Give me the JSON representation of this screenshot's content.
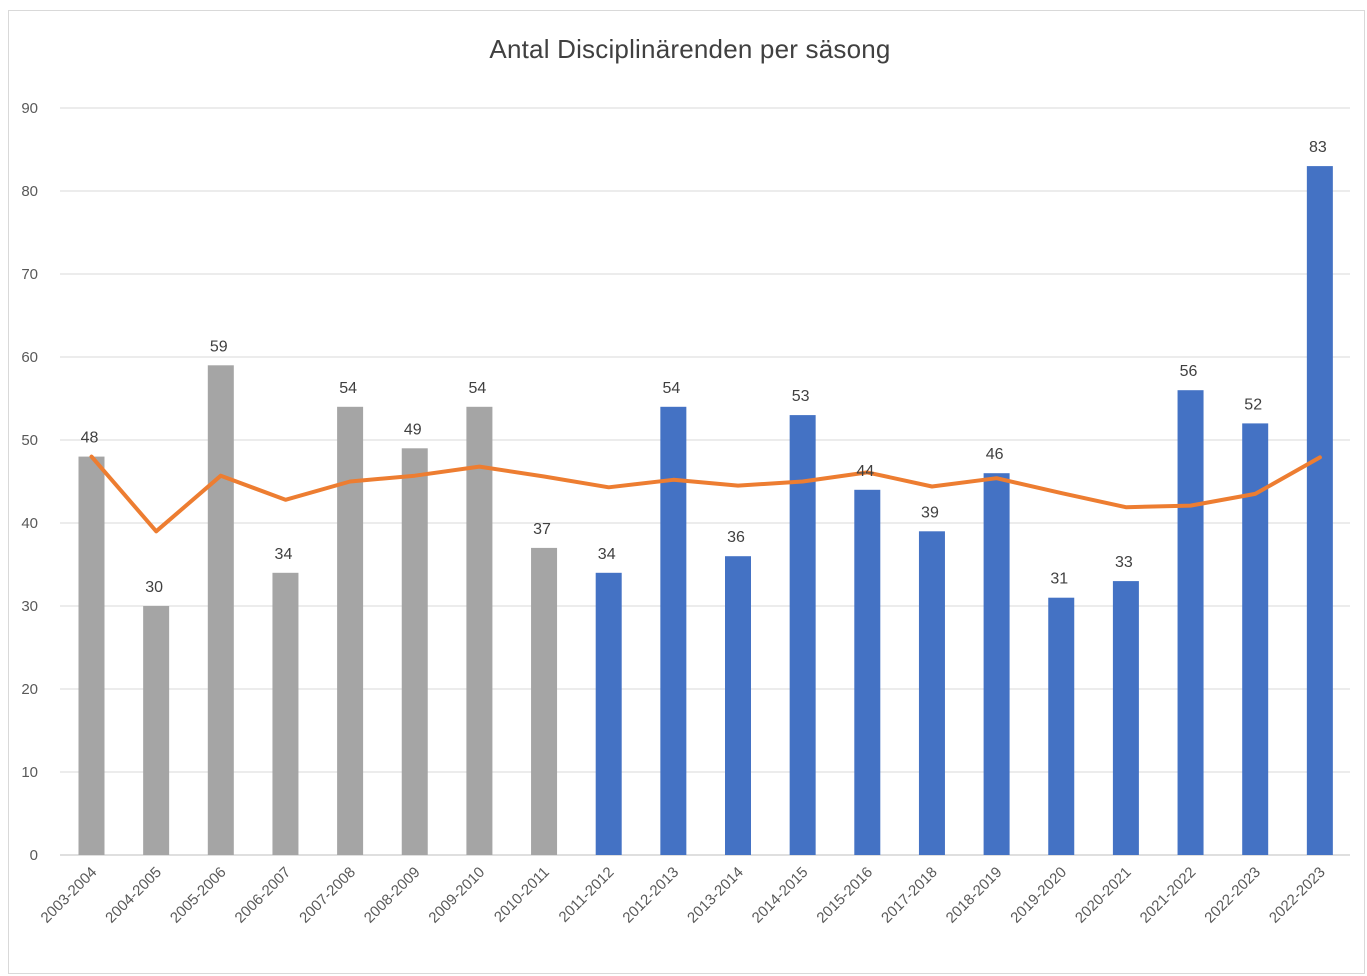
{
  "chart_data": {
    "type": "bar",
    "title": "Antal Disciplinärenden per säsong",
    "xlabel": "",
    "ylabel": "",
    "ylim": [
      0,
      90
    ],
    "yticks": [
      0,
      10,
      20,
      30,
      40,
      50,
      60,
      70,
      80,
      90
    ],
    "grid": true,
    "categories": [
      "2003-2004",
      "2004-2005",
      "2005-2006",
      "2006-2007",
      "2007-2008",
      "2008-2009",
      "2009-2010",
      "2010-2011",
      "2011-2012",
      "2012-2013",
      "2013-2014",
      "2014-2015",
      "2015-2016",
      "2017-2018",
      "2018-2019",
      "2019-2020",
      "2020-2021",
      "2021-2022",
      "2022-2023",
      "2022-2023"
    ],
    "series": [
      {
        "type": "bar",
        "values": [
          48,
          30,
          59,
          34,
          54,
          49,
          54,
          37,
          34,
          54,
          36,
          53,
          44,
          39,
          46,
          31,
          33,
          56,
          52,
          83
        ],
        "bar_colors": [
          "#a5a5a5",
          "#a5a5a5",
          "#a5a5a5",
          "#a5a5a5",
          "#a5a5a5",
          "#a5a5a5",
          "#a5a5a5",
          "#a5a5a5",
          "#4472c4",
          "#4472c4",
          "#4472c4",
          "#4472c4",
          "#4472c4",
          "#4472c4",
          "#4472c4",
          "#4472c4",
          "#4472c4",
          "#4472c4",
          "#4472c4",
          "#4472c4"
        ],
        "data_labels": true
      },
      {
        "type": "line",
        "color": "#ed7d31",
        "values": [
          48,
          39,
          45.7,
          42.8,
          45,
          45.7,
          46.8,
          45.6,
          44.3,
          45.2,
          44.5,
          45,
          46.1,
          44.4,
          45.4,
          43.6,
          41.9,
          42.1,
          43.5,
          47.9
        ]
      }
    ]
  }
}
